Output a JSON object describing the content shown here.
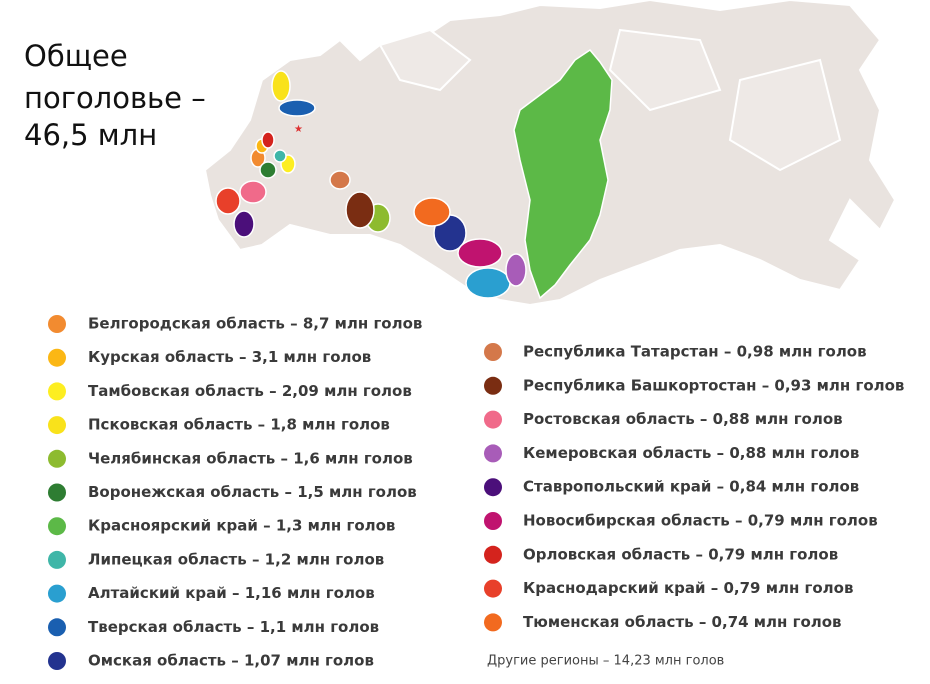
{
  "title": [
    "Общее",
    "поголовье –",
    "46,5 млн"
  ],
  "legend_left": [
    {
      "text": "Белгородская область – 8,7 млн голов",
      "color": "#f28b30"
    },
    {
      "text": "Курская область – 3,1 млн голов",
      "color": "#fbb714"
    },
    {
      "text": "Тамбовская область – 2,09 млн голов",
      "color": "#fdee21"
    },
    {
      "text": "Псковская область – 1,8 млн голов",
      "color": "#f9e21b"
    },
    {
      "text": "Челябинская область – 1,6 млн голов",
      "color": "#8dbb2f"
    },
    {
      "text": "Воронежская область – 1,5 млн голов",
      "color": "#2e7d32"
    },
    {
      "text": "Красноярский край – 1,3 млн голов",
      "color": "#5cb947"
    },
    {
      "text": "Липецкая область – 1,2 млн голов",
      "color": "#3fb6a8"
    },
    {
      "text": "Алтайский край – 1,16 млн голов",
      "color": "#2a9fd0"
    },
    {
      "text": "Тверская область – 1,1 млн голов",
      "color": "#1a5fb0"
    },
    {
      "text": "Омская область – 1,07 млн голов",
      "color": "#23338f"
    }
  ],
  "legend_right": [
    {
      "text": "Республика Татарстан – 0,98 млн голов",
      "color": "#d4784a"
    },
    {
      "text": "Республика Башкортостан – 0,93 млн голов",
      "color": "#7a2d12"
    },
    {
      "text": "Ростовская область – 0,88 млн голов",
      "color": "#f06a8a"
    },
    {
      "text": "Кемеровская область – 0,88 млн голов",
      "color": "#a85cb8"
    },
    {
      "text": "Ставропольский край – 0,84 млн голов",
      "color": "#4b0f7a"
    },
    {
      "text": "Новосибирская область – 0,79 млн голов",
      "color": "#c0136f"
    },
    {
      "text": "Орловская область – 0,79 млн голов",
      "color": "#d4231d"
    },
    {
      "text": "Краснодарский край – 0,79 млн голов",
      "color": "#e8402a"
    },
    {
      "text": "Тюменская область – 0,74 млн голов",
      "color": "#f26a1f"
    }
  ],
  "footer": "Другие регионы – 14,23 млн голов"
}
